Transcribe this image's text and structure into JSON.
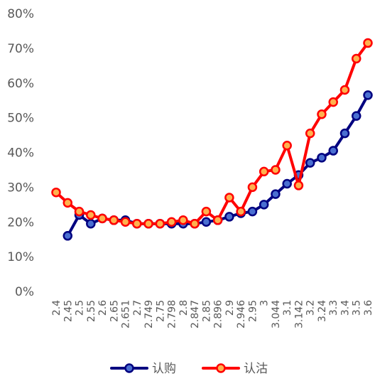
{
  "chart_data": {
    "type": "line",
    "title": "",
    "xlabel": "",
    "ylabel": "",
    "ylim": [
      0,
      0.8
    ],
    "y_ticks": [
      "0%",
      "10%",
      "20%",
      "30%",
      "40%",
      "50%",
      "60%",
      "70%",
      "80%"
    ],
    "grid": false,
    "legend_position": "bottom",
    "x": [
      "2.4",
      "2.45",
      "2.5",
      "2.55",
      "2.6",
      "2.65",
      "2.651",
      "2.7",
      "2.749",
      "2.75",
      "2.798",
      "2.8",
      "2.847",
      "2.85",
      "2.896",
      "2.9",
      "2.946",
      "2.95",
      "3",
      "3.044",
      "3.1",
      "3.142",
      "3.2",
      "3.24",
      "3.3",
      "3.4",
      "3.5",
      "3.6"
    ],
    "x_tick_labels": [
      "2.4",
      "2.45",
      "2.5",
      "2.55",
      "2.6",
      "2.65",
      "2.651",
      "2.7",
      "2.749",
      "2.75",
      "2.798",
      "2.8",
      "2.847",
      "2.85",
      "2.896",
      "2.9",
      "2.946",
      "2.95",
      "3",
      "3.044",
      "3.1",
      "3.142",
      "3.2",
      "3.24",
      "3.3",
      "3.4",
      "3.5",
      "3.6"
    ],
    "series": [
      {
        "name": "认购",
        "color": "#000080",
        "marker_fill": "#4a6fd1",
        "values": [
          null,
          0.16,
          0.22,
          0.195,
          0.21,
          0.205,
          0.205,
          0.195,
          0.195,
          0.195,
          0.195,
          0.195,
          0.195,
          0.2,
          0.205,
          0.215,
          0.225,
          0.23,
          0.25,
          0.28,
          0.31,
          0.335,
          0.37,
          0.385,
          0.405,
          0.455,
          0.505,
          0.565
        ]
      },
      {
        "name": "认沽",
        "color": "#ff0000",
        "marker_fill": "#ffb14e",
        "values": [
          0.285,
          0.255,
          0.23,
          0.22,
          0.21,
          0.205,
          0.2,
          0.195,
          0.195,
          0.195,
          0.2,
          0.205,
          0.195,
          0.23,
          0.205,
          0.27,
          0.23,
          0.3,
          0.345,
          0.35,
          0.42,
          0.305,
          0.455,
          0.51,
          0.545,
          0.58,
          0.67,
          0.715
        ]
      }
    ]
  }
}
